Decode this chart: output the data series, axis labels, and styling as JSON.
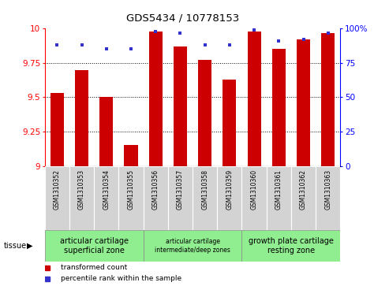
{
  "title": "GDS5434 / 10778153",
  "samples": [
    "GSM1310352",
    "GSM1310353",
    "GSM1310354",
    "GSM1310355",
    "GSM1310356",
    "GSM1310357",
    "GSM1310358",
    "GSM1310359",
    "GSM1310360",
    "GSM1310361",
    "GSM1310362",
    "GSM1310363"
  ],
  "red_values": [
    9.53,
    9.7,
    9.5,
    9.15,
    9.98,
    9.87,
    9.77,
    9.63,
    9.98,
    9.85,
    9.92,
    9.97
  ],
  "blue_values": [
    88,
    88,
    85,
    85,
    98,
    97,
    88,
    88,
    99,
    91,
    92,
    97
  ],
  "ylim_left": [
    9.0,
    10.0
  ],
  "ylim_right": [
    0,
    100
  ],
  "yticks_left": [
    9.0,
    9.25,
    9.5,
    9.75,
    10.0
  ],
  "yticks_right": [
    0,
    25,
    50,
    75,
    100
  ],
  "ytick_labels_left": [
    "9",
    "9.25",
    "9.5",
    "9.75",
    "10"
  ],
  "ytick_labels_right": [
    "0",
    "25",
    "50",
    "75",
    "100%"
  ],
  "tissue_groups": [
    {
      "label": "articular cartilage\nsuperficial zone",
      "start": 0,
      "end": 4,
      "fontsize": 7
    },
    {
      "label": "articular cartilage\nintermediate/deep zones",
      "start": 4,
      "end": 8,
      "fontsize": 5.5
    },
    {
      "label": "growth plate cartilage\nresting zone",
      "start": 8,
      "end": 12,
      "fontsize": 7
    }
  ],
  "bar_width": 0.55,
  "red_color": "#cc0000",
  "blue_color": "#3333cc",
  "tissue_label": "tissue",
  "legend_red": "transformed count",
  "legend_blue": "percentile rank within the sample",
  "gray_cell": "#d3d3d3",
  "green_tissue": "#90ee90"
}
